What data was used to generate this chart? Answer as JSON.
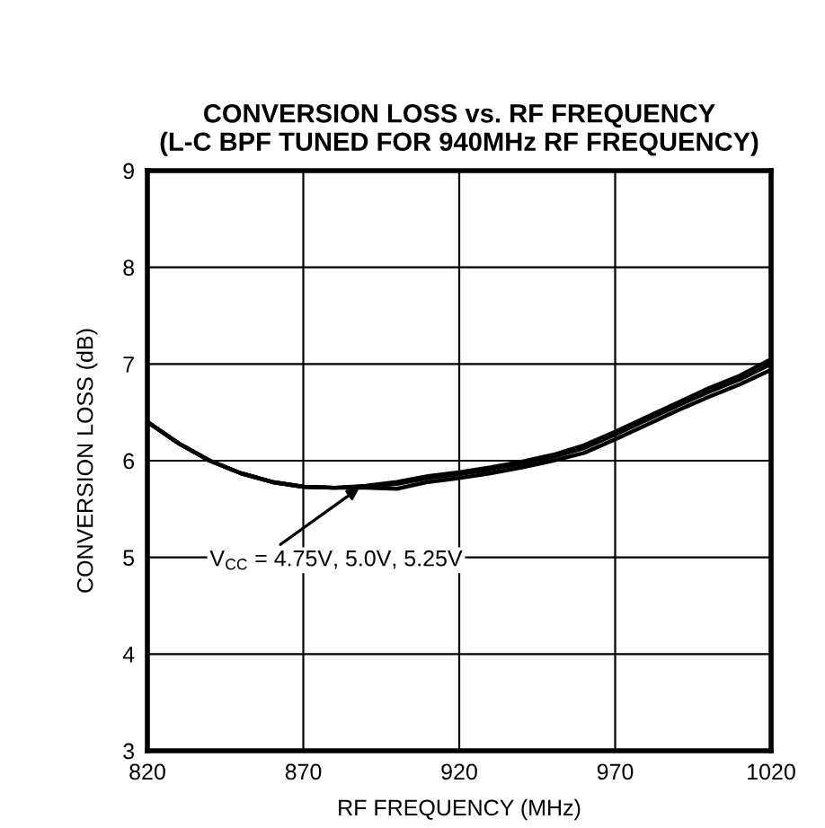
{
  "chart_data": {
    "type": "line",
    "title": "CONVERSION LOSS vs. RF FREQUENCY\n(L-C BPF TUNED FOR 940MHz RF FREQUENCY)",
    "xlabel": "RF FREQUENCY (MHz)",
    "ylabel": "CONVERSION LOSS (dB)",
    "x": [
      820,
      830,
      840,
      850,
      860,
      870,
      880,
      890,
      900,
      910,
      920,
      930,
      940,
      950,
      960,
      970,
      980,
      990,
      1000,
      1010,
      1020
    ],
    "series": [
      {
        "color": "#000000",
        "values": [
          6.4,
          6.18,
          6.0,
          5.87,
          5.78,
          5.73,
          5.72,
          5.74,
          5.78,
          5.84,
          5.88,
          5.93,
          5.99,
          6.06,
          6.16,
          6.3,
          6.45,
          6.6,
          6.75,
          6.88,
          7.05
        ]
      },
      {
        "color": "#000000",
        "values": [
          6.4,
          6.18,
          6.0,
          5.87,
          5.78,
          5.73,
          5.72,
          5.73,
          5.76,
          5.82,
          5.86,
          5.91,
          5.97,
          6.04,
          6.13,
          6.27,
          6.42,
          6.57,
          6.71,
          6.84,
          7.0
        ]
      },
      {
        "color": "#000000",
        "values": [
          6.4,
          6.18,
          6.0,
          5.87,
          5.78,
          5.73,
          5.72,
          5.72,
          5.71,
          5.78,
          5.82,
          5.87,
          5.93,
          6.0,
          6.08,
          6.22,
          6.37,
          6.52,
          6.66,
          6.79,
          6.94
        ]
      }
    ],
    "annotations": [
      {
        "text": "V$_{CC}$ = 4.75V, 5.0V, 5.25V",
        "x": 888,
        "y": 5.72
      }
    ],
    "xlim": [
      820,
      1020
    ],
    "xticks": [
      820,
      870,
      920,
      970,
      1020
    ],
    "ylim": [
      3,
      9
    ],
    "yticks": [
      3,
      4,
      5,
      6,
      7,
      8,
      9
    ],
    "grid": true,
    "line_style": "solid",
    "marker": "none"
  }
}
